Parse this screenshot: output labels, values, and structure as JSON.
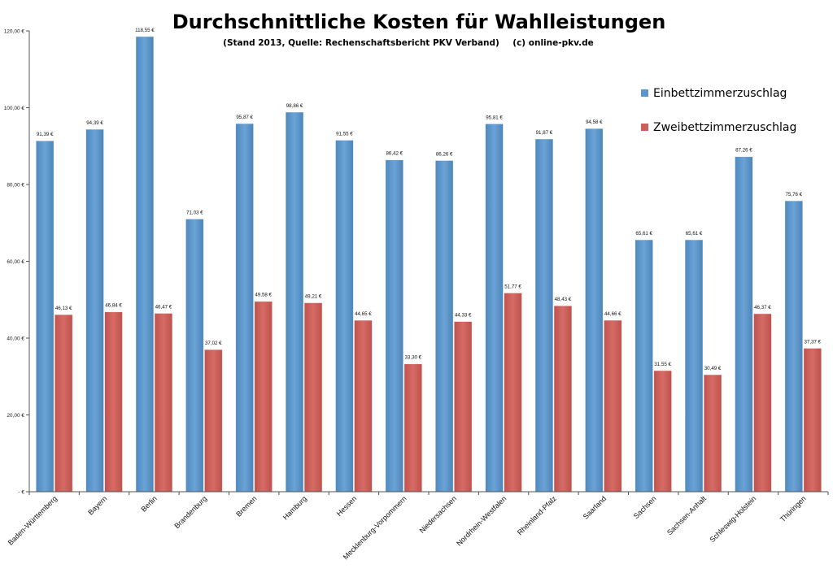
{
  "chart_data": {
    "type": "bar",
    "title": "Durchschnittliche Kosten für Wahlleistungen",
    "subtitle_left": "(Stand 2013, Quelle: Rechenschaftsbericht PKV Verband)",
    "subtitle_right": "(c) online-pkv.de",
    "xlabel": "",
    "ylabel": "",
    "ylim": [
      0,
      120
    ],
    "ytick_values": [
      0,
      20,
      40,
      60,
      80,
      100,
      120
    ],
    "ytick_labels": [
      "-   €",
      "20,00 €",
      "40,00 €",
      "60,00 €",
      "80,00 €",
      "100,00 €",
      "120,00 €"
    ],
    "grid": false,
    "legend_position": "right",
    "categories": [
      "Baden-Württemberg",
      "Bayern",
      "Berlin",
      "Brandenburg",
      "Bremen",
      "Hamburg",
      "Hessen",
      "Mecklenburg-Vorpommern",
      "Niedersachsen",
      "Nordrhein-Westfalen",
      "Rheinland-Pfalz",
      "Saarland",
      "Sachsen",
      "Sachsen-Anhalt",
      "Schleswig-Holstein",
      "Thüringen"
    ],
    "series": [
      {
        "name": "Einbettzimmerzuschlag",
        "color": "#5b95c9",
        "values": [
          91.39,
          94.39,
          118.55,
          71.03,
          95.87,
          98.86,
          91.55,
          86.42,
          86.26,
          95.81,
          91.87,
          94.58,
          65.61,
          65.61,
          87.26,
          75.76
        ],
        "labels": [
          "91,39 €",
          "94,39 €",
          "118,55 €",
          "71,03 €",
          "95,87 €",
          "98,86 €",
          "91,55 €",
          "86,42 €",
          "86,26 €",
          "95,81 €",
          "91,87 €",
          "94,58 €",
          "65,61 €",
          "65,61 €",
          "87,26 €",
          "75,76 €"
        ]
      },
      {
        "name": "Zweibettzimmerzuschlag",
        "color": "#cc5f5a",
        "values": [
          46.13,
          46.84,
          46.47,
          37.02,
          49.58,
          49.21,
          44.65,
          33.3,
          44.33,
          51.77,
          48.43,
          44.66,
          31.55,
          30.49,
          46.37,
          37.37
        ],
        "labels": [
          "46,13 €",
          "46,84 €",
          "46,47 €",
          "37,02 €",
          "49,58 €",
          "49,21 €",
          "44,65 €",
          "33,30 €",
          "44,33 €",
          "51,77 €",
          "48,43 €",
          "44,66 €",
          "31,55 €",
          "30,49 €",
          "46,37 €",
          "37,37 €"
        ]
      }
    ]
  }
}
